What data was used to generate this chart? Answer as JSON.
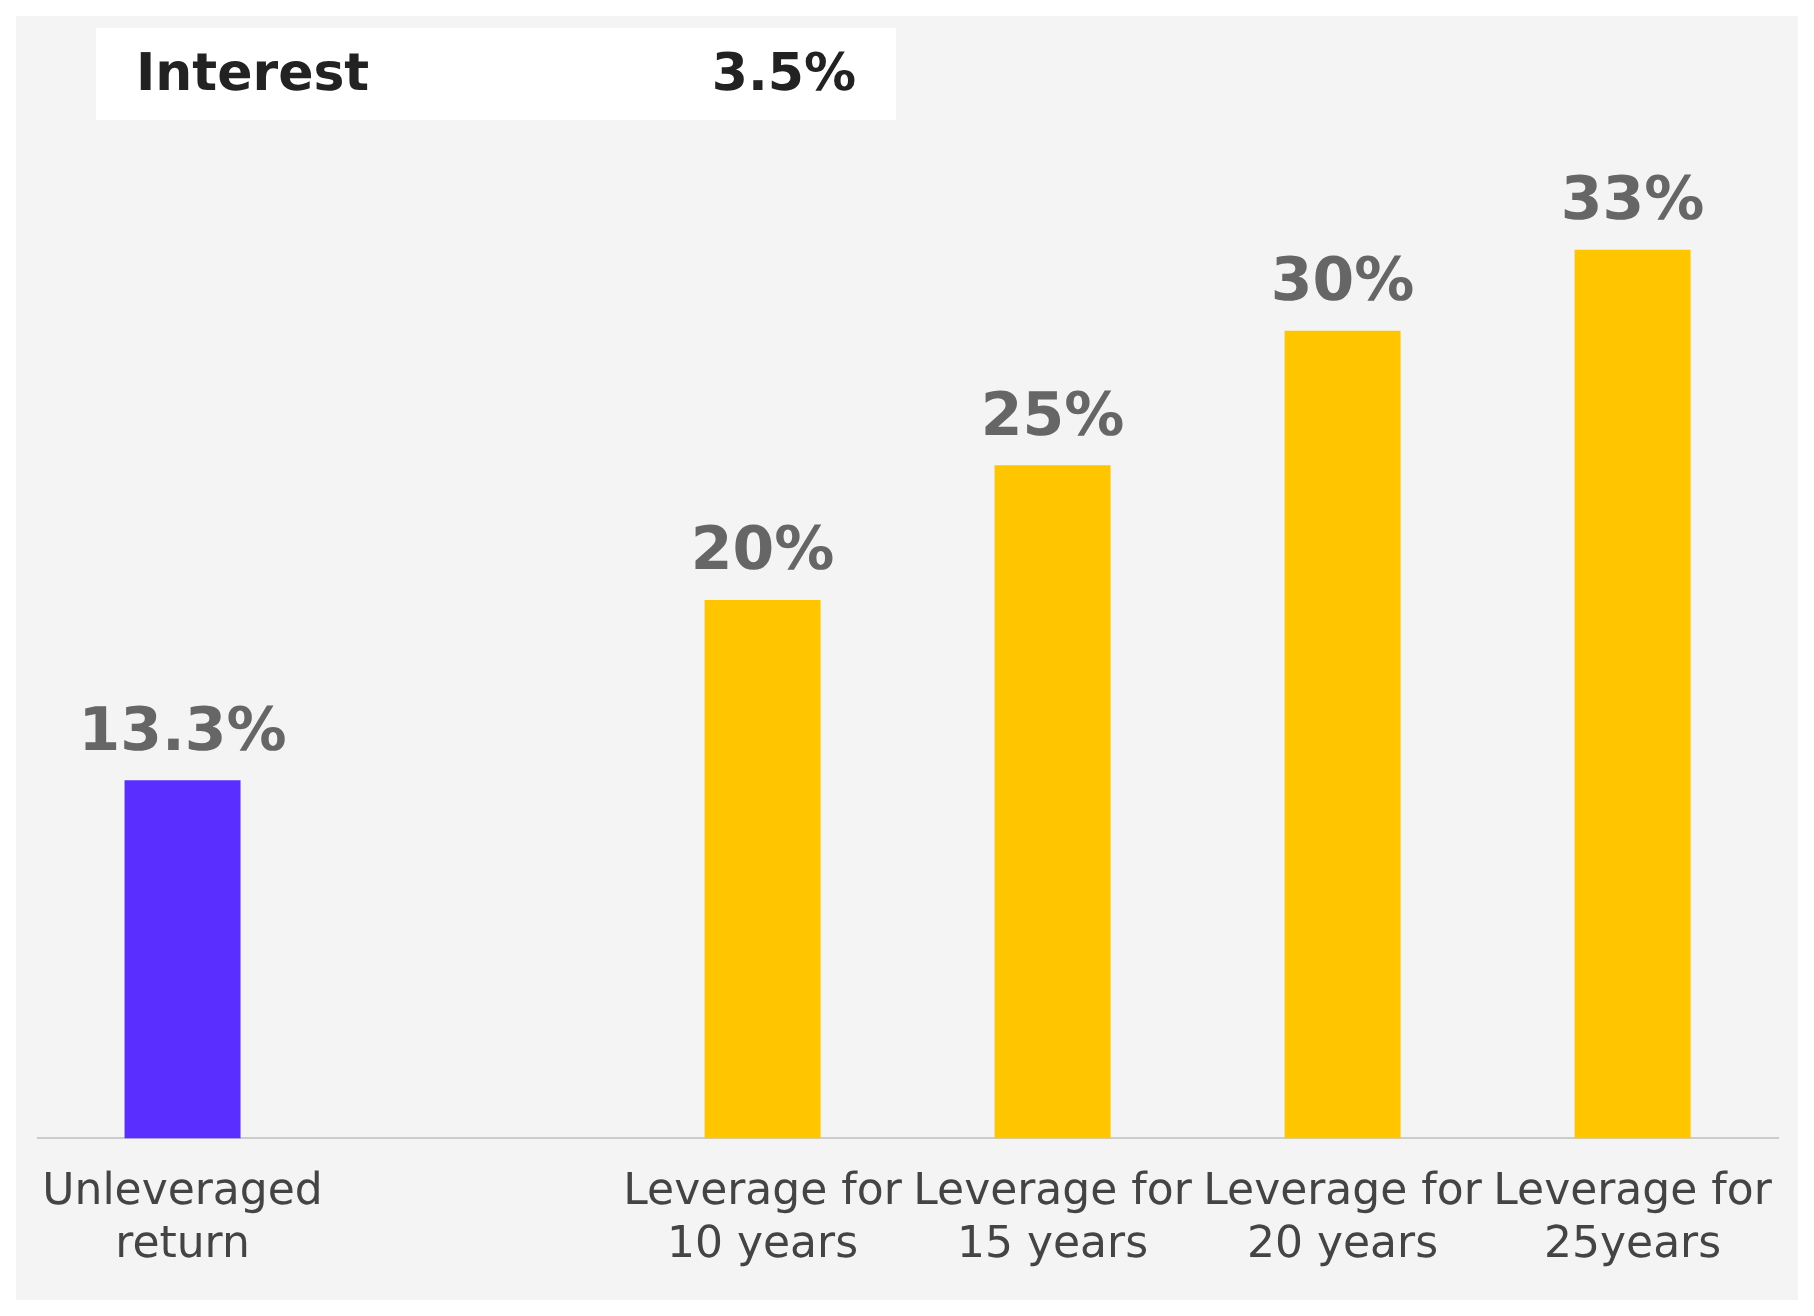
{
  "chart_data": {
    "type": "bar",
    "categories": [
      "Unleveraged return",
      null,
      "Leverage for 10 years",
      "Leverage for 15 years",
      "Leverage for 20 years",
      "Leverage for 25years"
    ],
    "values": [
      13.3,
      null,
      20,
      25,
      30,
      33
    ],
    "value_labels": [
      "13.3%",
      null,
      "20%",
      "25%",
      "30%",
      "33%"
    ],
    "colors": [
      "#5a2eff",
      null,
      "#ffc600",
      "#ffc600",
      "#ffc600",
      "#ffc600"
    ],
    "annotations": [
      "Interest",
      "3.5%"
    ],
    "grid": false,
    "legend": false
  }
}
